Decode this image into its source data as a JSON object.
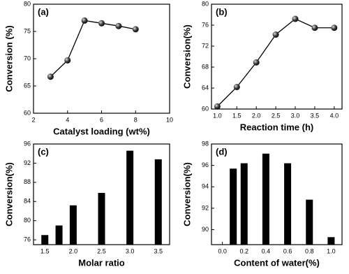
{
  "chart_data": [
    {
      "type": "line",
      "panel": "(a)",
      "xlabel": "Catalyst loading (wt%)",
      "ylabel": "Conversion (%)",
      "color": "#000000",
      "x": [
        3,
        4,
        5,
        6,
        7,
        8
      ],
      "values": [
        66.7,
        69.7,
        77,
        76.5,
        76,
        75.4
      ],
      "xlim": [
        2,
        10
      ],
      "ylim": [
        60,
        80
      ],
      "xticks": [
        2,
        4,
        6,
        8,
        10
      ],
      "yticks": [
        60,
        65,
        70,
        75,
        80
      ]
    },
    {
      "type": "line",
      "panel": "(b)",
      "xlabel": "Reaction time (h)",
      "ylabel": "Conversion(%)",
      "color": "#000000",
      "x": [
        1,
        1.5,
        2,
        2.5,
        3,
        3.5,
        4
      ],
      "values": [
        60.5,
        64.2,
        68.9,
        74.2,
        77.2,
        75.5,
        75.5
      ],
      "xlim": [
        0.85,
        4.2
      ],
      "ylim": [
        60,
        80
      ],
      "xticks": [
        {
          "value": 1,
          "label": "1.0"
        },
        1.5,
        {
          "value": 2,
          "label": "2.0"
        },
        2.5,
        {
          "value": 3,
          "label": "3.0"
        },
        3.5,
        {
          "value": 4,
          "label": "4.0"
        }
      ],
      "yticks": [
        60,
        64,
        68,
        72,
        76,
        80
      ]
    },
    {
      "type": "bar",
      "panel": "(c)",
      "xlabel": "Molar ratio",
      "ylabel": "Conversion(%)",
      "color": "#000000",
      "x": [
        1.5,
        1.75,
        2,
        2.5,
        3,
        3.5
      ],
      "values": [
        77,
        79,
        83.2,
        85.8,
        94.6,
        92.8
      ],
      "xlim": [
        1.3,
        3.7
      ],
      "ylim": [
        75,
        96
      ],
      "xticks": [
        1.5,
        {
          "value": 2,
          "label": "2.0"
        },
        2.5,
        {
          "value": 3,
          "label": "3.0"
        },
        3.5
      ],
      "yticks": [
        76,
        80,
        84,
        88,
        92,
        96
      ]
    },
    {
      "type": "bar",
      "panel": "(d)",
      "xlabel": "Content of water(%)",
      "ylabel": "Conversion(%)",
      "color": "#000000",
      "x": [
        0.1,
        0.2,
        0.4,
        0.6,
        0.8,
        1
      ],
      "values": [
        95.7,
        96.2,
        97.1,
        96.2,
        92.8,
        89.3
      ],
      "xlim": [
        -0.1,
        1.1
      ],
      "ylim": [
        88.6,
        98
      ],
      "xticks": [
        {
          "value": 0,
          "label": "0.0"
        },
        0.2,
        0.4,
        0.6,
        0.8,
        {
          "value": 1,
          "label": "1.0"
        }
      ],
      "yticks": [
        90,
        92,
        94,
        96,
        98
      ]
    }
  ]
}
